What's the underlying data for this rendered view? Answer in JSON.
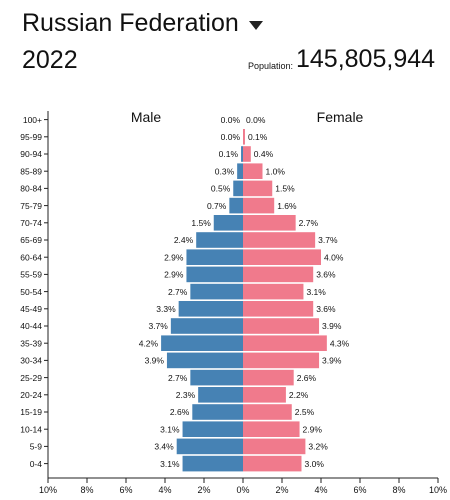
{
  "header": {
    "country": "Russian Federation",
    "year": "2022",
    "population_label": "Population:",
    "population_value": "145,805,944"
  },
  "chart_data": {
    "type": "bar",
    "subtype": "population-pyramid",
    "legend": {
      "male": "Male",
      "female": "Female"
    },
    "colors": {
      "male": "#4682B4",
      "female": "#F07A8C"
    },
    "categories": [
      "100+",
      "95-99",
      "90-94",
      "85-89",
      "80-84",
      "75-79",
      "70-74",
      "65-69",
      "60-64",
      "55-59",
      "50-54",
      "45-49",
      "40-44",
      "35-39",
      "30-34",
      "25-29",
      "20-24",
      "15-19",
      "10-14",
      "5-9",
      "0-4"
    ],
    "series": [
      {
        "name": "Male",
        "values": [
          0.0,
          0.0,
          0.1,
          0.3,
          0.5,
          0.7,
          1.5,
          2.4,
          2.9,
          2.9,
          2.7,
          3.3,
          3.7,
          4.2,
          3.9,
          2.7,
          2.3,
          2.6,
          3.1,
          3.4,
          3.1
        ]
      },
      {
        "name": "Female",
        "values": [
          0.0,
          0.1,
          0.4,
          1.0,
          1.5,
          1.6,
          2.7,
          3.7,
          4.0,
          3.6,
          3.1,
          3.6,
          3.9,
          4.3,
          3.9,
          2.6,
          2.2,
          2.5,
          2.9,
          3.2,
          3.0
        ]
      }
    ],
    "x_ticks": [
      "10%",
      "8%",
      "6%",
      "4%",
      "2%",
      "0%",
      "2%",
      "4%",
      "6%",
      "8%",
      "10%"
    ],
    "xlim": [
      -10,
      10
    ]
  }
}
